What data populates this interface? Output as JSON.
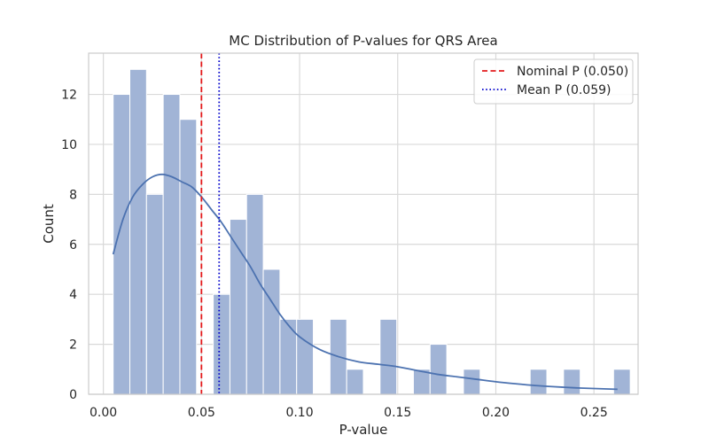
{
  "chart_data": {
    "type": "histogram",
    "title": "MC Distribution of P-values for QRS Area",
    "xlabel": "P-value",
    "ylabel": "Count",
    "xlim": [
      -0.0075,
      0.2725
    ],
    "ylim": [
      0,
      13.65
    ],
    "xticks": [
      0.0,
      0.05,
      0.1,
      0.15,
      0.2,
      0.25
    ],
    "xtick_labels": [
      "0.00",
      "0.05",
      "0.10",
      "0.15",
      "0.20",
      "0.25"
    ],
    "yticks": [
      0,
      2,
      4,
      6,
      8,
      10,
      12
    ],
    "ytick_labels": [
      "0",
      "2",
      "4",
      "6",
      "8",
      "10",
      "12"
    ],
    "grid": true,
    "bins": {
      "start": 0.005,
      "width": 0.0085,
      "counts": [
        12,
        13,
        8,
        12,
        11,
        0,
        4,
        7,
        8,
        5,
        3,
        3,
        0,
        3,
        1,
        0,
        3,
        0,
        1,
        2,
        0,
        1,
        0,
        0,
        0,
        1,
        0,
        1,
        0,
        0,
        1
      ]
    },
    "kde": {
      "x": [
        0.005,
        0.01,
        0.015,
        0.02,
        0.025,
        0.03,
        0.035,
        0.04,
        0.045,
        0.05,
        0.055,
        0.06,
        0.065,
        0.07,
        0.075,
        0.08,
        0.085,
        0.09,
        0.095,
        0.1,
        0.11,
        0.12,
        0.13,
        0.14,
        0.15,
        0.16,
        0.17,
        0.18,
        0.19,
        0.2,
        0.21,
        0.22,
        0.23,
        0.24,
        0.25,
        0.262
      ],
      "y": [
        5.6,
        7.0,
        7.9,
        8.4,
        8.7,
        8.8,
        8.7,
        8.5,
        8.3,
        7.9,
        7.4,
        6.9,
        6.3,
        5.7,
        5.1,
        4.4,
        3.8,
        3.2,
        2.7,
        2.3,
        1.8,
        1.5,
        1.3,
        1.2,
        1.1,
        0.95,
        0.8,
        0.7,
        0.6,
        0.5,
        0.42,
        0.35,
        0.3,
        0.26,
        0.23,
        0.2
      ],
      "color": "#4c72b0"
    },
    "bar_color": "#a1b4d6",
    "vlines": [
      {
        "x": 0.05,
        "label": "Nominal P (0.050)",
        "color": "#e31a1c",
        "style": "dashed"
      },
      {
        "x": 0.059,
        "label": "Mean P (0.059)",
        "color": "#0000cc",
        "style": "dotted"
      }
    ],
    "legend_position": "top-right"
  }
}
